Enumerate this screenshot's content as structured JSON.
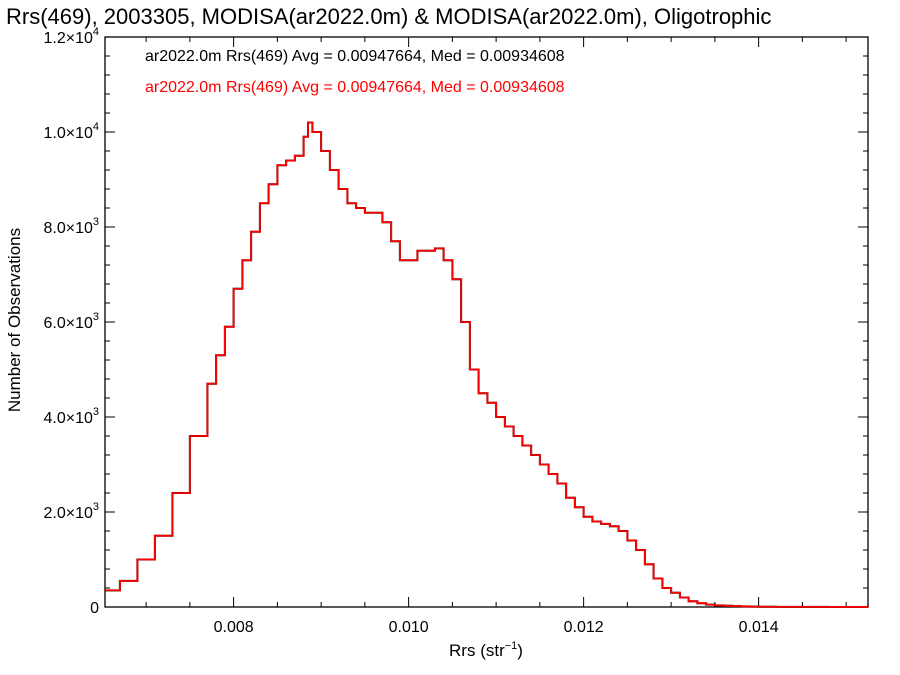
{
  "chart_data": {
    "type": "line",
    "title": "Rrs(469), 2003305, MODISA(ar2022.0m) & MODISA(ar2022.0m), Oligotrophic",
    "xlabel_main": "Rrs (str",
    "xlabel_sup": "−1",
    "xlabel_tail": ")",
    "ylabel": "Number of Observations",
    "xlim": [
      0.00653,
      0.01525
    ],
    "ylim": [
      0,
      12000
    ],
    "grid": false,
    "legend_placement": "top-left",
    "xticks": [
      {
        "value": 0.008,
        "label": "0.008"
      },
      {
        "value": 0.01,
        "label": "0.010"
      },
      {
        "value": 0.012,
        "label": "0.012"
      },
      {
        "value": 0.014,
        "label": "0.014"
      }
    ],
    "yticks": [
      {
        "value": 0,
        "mant": "0",
        "exp": ""
      },
      {
        "value": 2000,
        "mant": "2.0×10",
        "exp": "3"
      },
      {
        "value": 4000,
        "mant": "4.0×10",
        "exp": "3"
      },
      {
        "value": 6000,
        "mant": "6.0×10",
        "exp": "3"
      },
      {
        "value": 8000,
        "mant": "8.0×10",
        "exp": "3"
      },
      {
        "value": 10000,
        "mant": "1.0×10",
        "exp": "4"
      },
      {
        "value": 12000,
        "mant": "1.2×10",
        "exp": "4"
      }
    ],
    "legend": [
      "ar2022.0m Rrs(469) Avg = 0.00947664, Med = 0.00934608",
      "ar2022.0m Rrs(469) Avg = 0.00947664, Med = 0.00934608"
    ],
    "series": [
      {
        "color": "#000000",
        "x": [
          0.00653,
          0.0067,
          0.0069,
          0.0071,
          0.0073,
          0.0075,
          0.0077,
          0.0078,
          0.0079,
          0.008,
          0.0081,
          0.0082,
          0.0083,
          0.0084,
          0.0085,
          0.0086,
          0.0087,
          0.0088,
          0.00885,
          0.0089,
          0.009,
          0.0091,
          0.0092,
          0.0093,
          0.0094,
          0.0095,
          0.0096,
          0.0097,
          0.0098,
          0.0099,
          0.01,
          0.0101,
          0.0102,
          0.0103,
          0.0104,
          0.0105,
          0.0106,
          0.0107,
          0.0108,
          0.0109,
          0.011,
          0.0111,
          0.0112,
          0.0113,
          0.0114,
          0.0115,
          0.0116,
          0.0117,
          0.0118,
          0.0119,
          0.012,
          0.0121,
          0.0122,
          0.0123,
          0.0124,
          0.0125,
          0.0126,
          0.0127,
          0.0128,
          0.0129,
          0.013,
          0.0131,
          0.0132,
          0.0133,
          0.0134,
          0.0135,
          0.0136,
          0.0137,
          0.0138,
          0.0139,
          0.014,
          0.0142,
          0.0145,
          0.0148,
          0.01525
        ],
        "y": [
          350,
          550,
          1000,
          1500,
          2400,
          3600,
          4700,
          5300,
          5900,
          6700,
          7300,
          7900,
          8500,
          8900,
          9300,
          9400,
          9500,
          9900,
          10200,
          10000,
          9600,
          9200,
          8800,
          8500,
          8400,
          8300,
          8300,
          8100,
          7700,
          7300,
          7300,
          7500,
          7500,
          7550,
          7300,
          6900,
          6000,
          5000,
          4500,
          4300,
          4000,
          3800,
          3600,
          3400,
          3200,
          3000,
          2800,
          2600,
          2300,
          2100,
          1900,
          1800,
          1750,
          1700,
          1600,
          1400,
          1200,
          900,
          600,
          400,
          300,
          200,
          120,
          80,
          50,
          35,
          25,
          18,
          12,
          8,
          5,
          3,
          2,
          1,
          0
        ]
      },
      {
        "color": "#ff0000",
        "x": [
          0.00653,
          0.0067,
          0.0069,
          0.0071,
          0.0073,
          0.0075,
          0.0077,
          0.0078,
          0.0079,
          0.008,
          0.0081,
          0.0082,
          0.0083,
          0.0084,
          0.0085,
          0.0086,
          0.0087,
          0.0088,
          0.00885,
          0.0089,
          0.009,
          0.0091,
          0.0092,
          0.0093,
          0.0094,
          0.0095,
          0.0096,
          0.0097,
          0.0098,
          0.0099,
          0.01,
          0.0101,
          0.0102,
          0.0103,
          0.0104,
          0.0105,
          0.0106,
          0.0107,
          0.0108,
          0.0109,
          0.011,
          0.0111,
          0.0112,
          0.0113,
          0.0114,
          0.0115,
          0.0116,
          0.0117,
          0.0118,
          0.0119,
          0.012,
          0.0121,
          0.0122,
          0.0123,
          0.0124,
          0.0125,
          0.0126,
          0.0127,
          0.0128,
          0.0129,
          0.013,
          0.0131,
          0.0132,
          0.0133,
          0.0134,
          0.0135,
          0.0136,
          0.0137,
          0.0138,
          0.0139,
          0.014,
          0.0142,
          0.0145,
          0.0148,
          0.01525
        ],
        "y": [
          350,
          550,
          1000,
          1500,
          2400,
          3600,
          4700,
          5300,
          5900,
          6700,
          7300,
          7900,
          8500,
          8900,
          9300,
          9400,
          9500,
          9900,
          10200,
          10000,
          9600,
          9200,
          8800,
          8500,
          8400,
          8300,
          8300,
          8100,
          7700,
          7300,
          7300,
          7500,
          7500,
          7550,
          7300,
          6900,
          6000,
          5000,
          4500,
          4300,
          4000,
          3800,
          3600,
          3400,
          3200,
          3000,
          2800,
          2600,
          2300,
          2100,
          1900,
          1800,
          1750,
          1700,
          1600,
          1400,
          1200,
          900,
          600,
          400,
          300,
          200,
          120,
          80,
          50,
          35,
          25,
          18,
          12,
          8,
          5,
          3,
          2,
          1,
          0
        ]
      }
    ]
  }
}
